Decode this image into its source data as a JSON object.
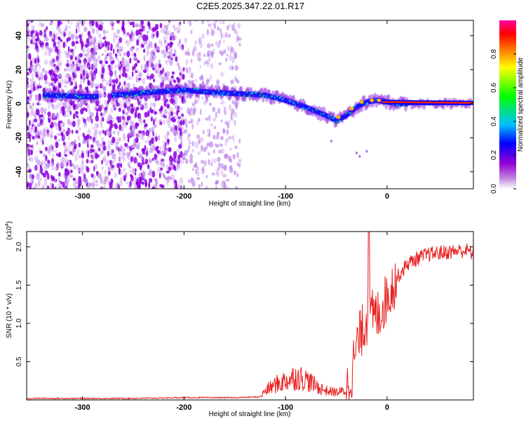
{
  "figure_title": "C2E5.2025.347.22.01.R17",
  "chart_data": [
    {
      "type": "heatmap",
      "title": "C2E5.2025.347.22.01.R17",
      "xlabel": "Height of straight line (km)",
      "ylabel": "Frequency (Hz)",
      "xlim": [
        -355,
        85
      ],
      "ylim": [
        -50,
        49
      ],
      "x_ticks": [
        -300,
        -200,
        -100,
        0
      ],
      "y_ticks": [
        -40,
        -20,
        0,
        20,
        40
      ],
      "colorbar": {
        "label": "Normalized spectral amplitude",
        "range": [
          0,
          1
        ],
        "ticks": [
          0.0,
          0.2,
          0.4,
          0.6,
          0.8
        ],
        "tick_labels": [
          "0.0",
          "0.2",
          "0.4",
          "0.6",
          "0.8"
        ],
        "colormap": [
          "#ffffff",
          "#9400d3",
          "#0000ff",
          "#00c0ff",
          "#00ff00",
          "#ffff00",
          "#ff8000",
          "#ff0000",
          "#ff00a0"
        ]
      },
      "ridge": {
        "x": [
          -335,
          -290,
          -250,
          -200,
          -180,
          -150,
          -120,
          -100,
          -80,
          -60,
          -50,
          -40,
          -30,
          -20,
          -10,
          0,
          10,
          30,
          60,
          80
        ],
        "freq": [
          5,
          4,
          6,
          8,
          7,
          6,
          5,
          2,
          -2,
          -7,
          -10,
          -7,
          -2,
          1,
          2,
          1,
          0,
          0,
          0,
          0
        ]
      }
    },
    {
      "type": "line",
      "xlabel": "Height of straight line (km)",
      "ylabel": "SNR (10 * v/v)",
      "y_scale_label": "(x10",
      "y_scale_exponent": "4",
      "xlim": [
        -355,
        85
      ],
      "ylim": [
        0,
        2.2
      ],
      "x_ticks": [
        -300,
        -200,
        -100,
        0
      ],
      "y_ticks": [
        0.5,
        1.0,
        1.5,
        2.0
      ],
      "y_tick_labels": [
        "0.5",
        "1.0",
        "1.5",
        "2.0"
      ],
      "line_color": "#e82020",
      "series": [
        {
          "name": "SNR",
          "x": [
            -355,
            -300,
            -250,
            -200,
            -150,
            -125,
            -120,
            -110,
            -100,
            -90,
            -80,
            -70,
            -60,
            -50,
            -40,
            -35,
            -30,
            -25,
            -20,
            -15,
            -10,
            -5,
            0,
            10,
            20,
            30,
            40,
            50,
            60,
            70,
            80,
            85
          ],
          "y": [
            0.02,
            0.02,
            0.02,
            0.03,
            0.03,
            0.04,
            0.12,
            0.2,
            0.25,
            0.3,
            0.27,
            0.18,
            0.12,
            0.1,
            0.12,
            0.35,
            0.7,
            0.9,
            1.05,
            1.1,
            1.1,
            1.2,
            1.35,
            1.6,
            1.78,
            1.85,
            1.9,
            1.92,
            1.93,
            1.95,
            1.95,
            1.9
          ]
        }
      ]
    }
  ]
}
